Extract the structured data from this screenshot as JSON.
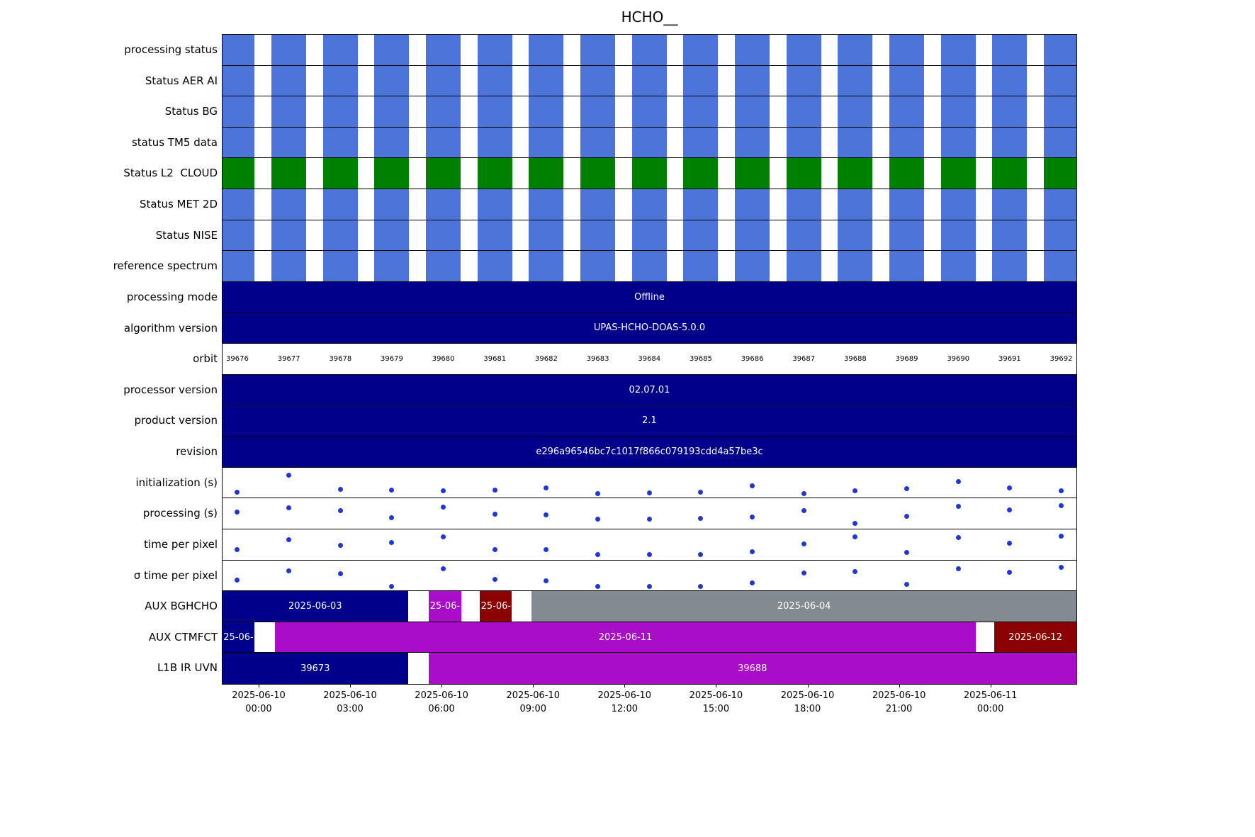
{
  "chart_data": {
    "type": "bar",
    "title": "HCHO__",
    "colors": {
      "stripe_blue": "#4d74d9",
      "stripe_green": "#008000",
      "navy": "#00008b",
      "purple": "#aa0dc8",
      "darkred": "#8b0000",
      "gray": "#838b91",
      "dot": "#2038d0"
    },
    "orbits": {
      "numbers": [
        39676,
        39677,
        39678,
        39679,
        39680,
        39681,
        39682,
        39683,
        39684,
        39685,
        39686,
        39687,
        39688,
        39689,
        39690,
        39691,
        39692
      ],
      "first_center_frac": 0.0174,
      "spacing_frac": 0.0603,
      "bar_width_frac": 0.0407
    },
    "rows": [
      {
        "label": "processing status",
        "kind": "striped",
        "color": "#4d74d9"
      },
      {
        "label": "Status AER AI",
        "kind": "striped",
        "color": "#4d74d9"
      },
      {
        "label": "Status BG",
        "kind": "striped",
        "color": "#4d74d9"
      },
      {
        "label": "status TM5 data",
        "kind": "striped",
        "color": "#4d74d9"
      },
      {
        "label": "Status L2  CLOUD",
        "kind": "striped",
        "color": "#008000"
      },
      {
        "label": "Status MET 2D",
        "kind": "striped",
        "color": "#4d74d9"
      },
      {
        "label": "Status NISE",
        "kind": "striped",
        "color": "#4d74d9"
      },
      {
        "label": "reference spectrum",
        "kind": "striped",
        "color": "#4d74d9"
      },
      {
        "label": "processing mode",
        "kind": "solid",
        "color": "#00008b",
        "text": "Offline"
      },
      {
        "label": "algorithm version",
        "kind": "solid",
        "color": "#00008b",
        "text": "UPAS-HCHO-DOAS-5.0.0"
      },
      {
        "label": "orbit",
        "kind": "orbit_numbers"
      },
      {
        "label": "processor version",
        "kind": "solid",
        "color": "#00008b",
        "text": "02.07.01"
      },
      {
        "label": "product version",
        "kind": "solid",
        "color": "#00008b",
        "text": "2.1"
      },
      {
        "label": "revision",
        "kind": "solid",
        "color": "#00008b",
        "text": "e296a96546bc7c1017f866c079193cdd4a57be3c"
      },
      {
        "label": "initialization (s)",
        "kind": "scatter",
        "values": [
          0.1,
          0.85,
          0.22,
          0.2,
          0.17,
          0.19,
          0.27,
          0.04,
          0.06,
          0.11,
          0.38,
          0.03,
          0.15,
          0.24,
          0.55,
          0.29,
          0.17
        ]
      },
      {
        "label": "processing (s)",
        "kind": "scatter",
        "values": [
          0.58,
          0.77,
          0.64,
          0.33,
          0.8,
          0.48,
          0.46,
          0.28,
          0.28,
          0.3,
          0.37,
          0.64,
          0.08,
          0.4,
          0.83,
          0.66,
          0.87
        ]
      },
      {
        "label": "time per pixel",
        "kind": "scatter",
        "values": [
          0.28,
          0.71,
          0.49,
          0.59,
          0.83,
          0.3,
          0.28,
          0.07,
          0.09,
          0.09,
          0.21,
          0.53,
          0.85,
          0.16,
          0.8,
          0.57,
          0.87
        ]
      },
      {
        "label": "σ time per pixel",
        "kind": "scatter",
        "values": [
          0.3,
          0.7,
          0.58,
          0.05,
          0.81,
          0.34,
          0.27,
          0.03,
          0.03,
          0.05,
          0.2,
          0.61,
          0.67,
          0.13,
          0.79,
          0.65,
          0.85
        ]
      },
      {
        "label": "AUX BGHCHO",
        "kind": "segments",
        "segments": [
          {
            "start": 0.0,
            "end": 0.2171,
            "color": "#00008b",
            "text": "2025-06-03"
          },
          {
            "start": 0.2411,
            "end": 0.28,
            "color": "#aa0dc8",
            "text": "25-06-"
          },
          {
            "start": 0.3016,
            "end": 0.3389,
            "color": "#8b0000",
            "text": "25-06-"
          },
          {
            "start": 0.3621,
            "end": 1.0,
            "color": "#838b91",
            "text": "2025-06-04"
          }
        ]
      },
      {
        "label": "AUX CTMFCT",
        "kind": "segments",
        "segments": [
          {
            "start": 0.0,
            "end": 0.0373,
            "color": "#00008b",
            "text": "25-06-"
          },
          {
            "start": 0.0613,
            "end": 0.8824,
            "color": "#aa0dc8",
            "text": "2025-06-11"
          },
          {
            "start": 0.9039,
            "end": 1.0,
            "color": "#8b0000",
            "text": "2025-06-12"
          }
        ]
      },
      {
        "label": "L1B IR UVN",
        "kind": "segments",
        "segments": [
          {
            "start": 0.0,
            "end": 0.2171,
            "color": "#00008b",
            "text": "39673"
          },
          {
            "start": 0.2411,
            "end": 1.0,
            "color": "#aa0dc8",
            "text": "39688"
          }
        ]
      }
    ],
    "x_axis": {
      "ticks": [
        {
          "date": "2025-06-10",
          "time": "00:00",
          "frac": 0.0423
        },
        {
          "date": "2025-06-10",
          "time": "03:00",
          "frac": 0.1494
        },
        {
          "date": "2025-06-10",
          "time": "06:00",
          "frac": 0.2565
        },
        {
          "date": "2025-06-10",
          "time": "09:00",
          "frac": 0.3637
        },
        {
          "date": "2025-06-10",
          "time": "12:00",
          "frac": 0.4708
        },
        {
          "date": "2025-06-10",
          "time": "15:00",
          "frac": 0.5779
        },
        {
          "date": "2025-06-10",
          "time": "18:00",
          "frac": 0.6851
        },
        {
          "date": "2025-06-10",
          "time": "21:00",
          "frac": 0.7922
        },
        {
          "date": "2025-06-11",
          "time": "00:00",
          "frac": 0.8993
        }
      ]
    }
  }
}
